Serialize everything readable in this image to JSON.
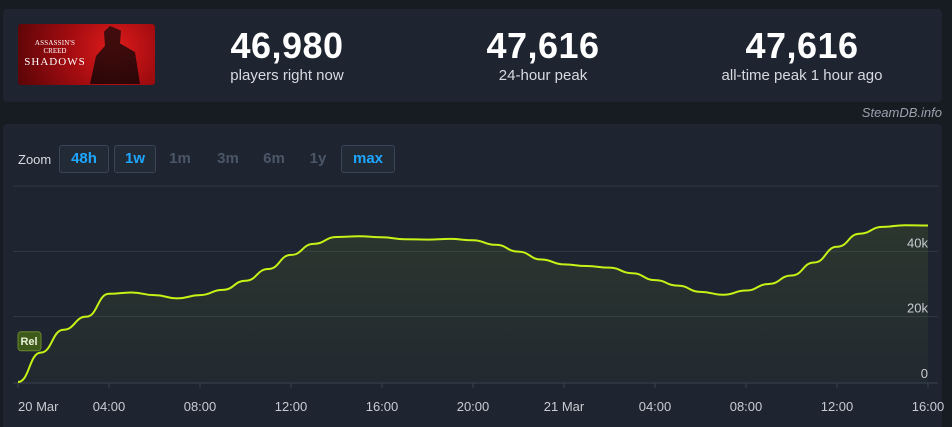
{
  "game": {
    "logo_line1": "ASSASSIN'S",
    "logo_line2": "CREED",
    "logo_line3": "SHADOWS"
  },
  "stats": {
    "now_value": "46,980",
    "now_label": "players right now",
    "peak24_value": "47,616",
    "peak24_label": "24-hour peak",
    "alltime_value": "47,616",
    "alltime_label": "all-time peak 1 hour ago"
  },
  "watermark": "SteamDB.info",
  "zoom": {
    "label": "Zoom",
    "options": [
      "48h",
      "1w",
      "1m",
      "3m",
      "6m",
      "1y",
      "max"
    ],
    "active": [
      "48h",
      "1w",
      "max"
    ]
  },
  "chart_data": {
    "type": "area",
    "series": [
      {
        "color": "#c6f216",
        "x": [
          "20 Mar 00:00",
          "01:00",
          "02:00",
          "03:00",
          "04:00",
          "05:00",
          "06:00",
          "07:00",
          "08:00",
          "09:00",
          "10:00",
          "11:00",
          "12:00",
          "13:00",
          "14:00",
          "15:00",
          "16:00",
          "17:00",
          "18:00",
          "19:00",
          "20:00",
          "21:00",
          "22:00",
          "23:00",
          "21 Mar 00:00",
          "01:00",
          "02:00",
          "03:00",
          "04:00",
          "05:00",
          "06:00",
          "07:00",
          "08:00",
          "09:00",
          "10:00",
          "11:00",
          "12:00",
          "13:00",
          "14:00",
          "15:00",
          "16:00"
        ],
        "values": [
          0,
          9000,
          16000,
          20000,
          27000,
          27400,
          26600,
          25600,
          26600,
          28200,
          31000,
          34600,
          38900,
          42300,
          44400,
          44600,
          44300,
          43700,
          43600,
          43800,
          43400,
          42000,
          39900,
          37500,
          36000,
          35500,
          35000,
          33300,
          31200,
          29500,
          27600,
          26700,
          28000,
          30000,
          32600,
          36600,
          41400,
          45400,
          47500,
          48000,
          47900
        ]
      }
    ],
    "x_ticks": [
      "20 Mar",
      "04:00",
      "08:00",
      "12:00",
      "16:00",
      "20:00",
      "21 Mar",
      "04:00",
      "08:00",
      "12:00",
      "16:00"
    ],
    "x_tick_hours": [
      0,
      4,
      8,
      12,
      16,
      20,
      24,
      28,
      32,
      36,
      40
    ],
    "y_ticks": [
      "0",
      "20k",
      "40k"
    ],
    "y_tick_values": [
      0,
      20000,
      40000
    ],
    "ylim": [
      0,
      60000
    ],
    "grid": true,
    "annotation": {
      "label": "Rel",
      "hour": 0.5,
      "value": 12000
    }
  }
}
